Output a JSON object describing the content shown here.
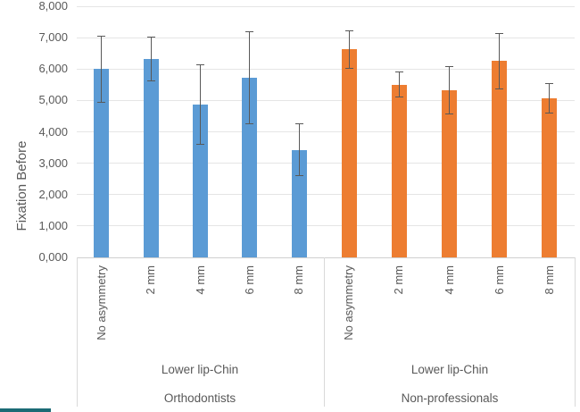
{
  "chart_data": {
    "type": "bar",
    "title": "",
    "ylabel": "Fixation Before",
    "xlabel": "",
    "ylim": [
      0,
      8000
    ],
    "ytick_interval": 1000,
    "ytick_labels": [
      "0,000",
      "1,000",
      "2,000",
      "3,000",
      "4,000",
      "5,000",
      "6,000",
      "7,000",
      "8,000"
    ],
    "grid": "horizontal",
    "legend": "none",
    "categories": [
      "No asymmetry",
      "2 mm",
      "4 mm",
      "6 mm",
      "8 mm"
    ],
    "series": [
      {
        "name": "Orthodontists",
        "group_label": "Lower lip-Chin",
        "color": "#5B9BD5",
        "values": [
          6000,
          6320,
          4860,
          5710,
          3430
        ],
        "error_bars": [
          1070,
          700,
          1280,
          1480,
          830
        ]
      },
      {
        "name": "Non-professionals",
        "group_label": "Lower lip-Chin",
        "color": "#ED7D31",
        "values": [
          6620,
          5500,
          5330,
          6250,
          5060
        ],
        "error_bars": [
          620,
          410,
          770,
          890,
          490
        ]
      }
    ],
    "error_bar_color": "#595959",
    "text_color": "#595959"
  },
  "fragment": {
    "color": "#1b6b75"
  }
}
